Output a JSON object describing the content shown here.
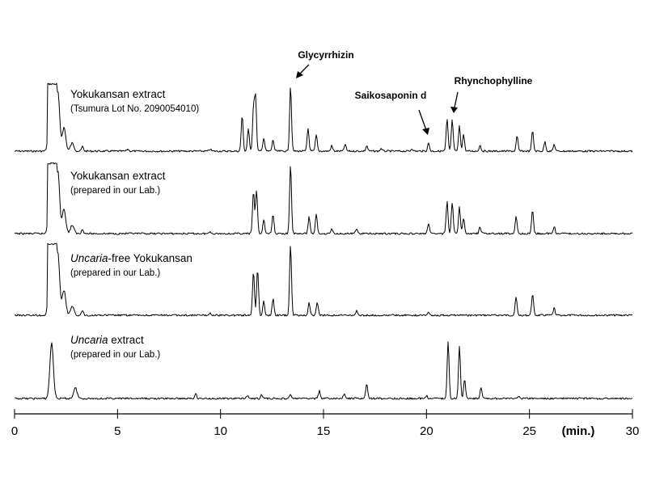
{
  "chart_data": {
    "type": "line",
    "xlabel": "(min.)",
    "xlim": [
      0,
      30
    ],
    "x_ticks": [
      "0",
      "5",
      "10",
      "15",
      "20",
      "25",
      "30"
    ],
    "series": [
      {
        "name_main": "Yokukansan extract",
        "name_main_italic": "",
        "name_sub": "(Tsumura Lot No. 2090054010)",
        "peaks": [
          [
            1.75,
            1.0
          ],
          [
            2.1,
            0.9
          ],
          [
            2.4,
            0.35
          ],
          [
            2.8,
            0.12
          ],
          [
            3.3,
            0.07
          ],
          [
            5.5,
            0.03
          ],
          [
            9.5,
            0.03
          ],
          [
            11.05,
            0.53
          ],
          [
            11.35,
            0.33
          ],
          [
            11.6,
            0.63
          ],
          [
            11.7,
            0.8
          ],
          [
            12.1,
            0.2
          ],
          [
            12.55,
            0.17
          ],
          [
            13.4,
            0.97
          ],
          [
            14.25,
            0.34
          ],
          [
            14.65,
            0.24
          ],
          [
            15.4,
            0.08
          ],
          [
            16.05,
            0.1
          ],
          [
            17.1,
            0.08
          ],
          [
            17.8,
            0.04
          ],
          [
            19.3,
            0.04
          ],
          [
            20.1,
            0.12
          ],
          [
            21.0,
            0.47
          ],
          [
            21.25,
            0.46
          ],
          [
            21.6,
            0.37
          ],
          [
            21.8,
            0.25
          ],
          [
            22.6,
            0.09
          ],
          [
            24.4,
            0.22
          ],
          [
            25.15,
            0.3
          ],
          [
            25.75,
            0.14
          ],
          [
            26.2,
            0.1
          ]
        ]
      },
      {
        "name_main": "Yokukansan extract",
        "name_main_italic": "",
        "name_sub": "(prepared in our Lab.)",
        "peaks": [
          [
            1.75,
            1.0
          ],
          [
            2.1,
            0.9
          ],
          [
            2.4,
            0.35
          ],
          [
            2.8,
            0.12
          ],
          [
            3.3,
            0.07
          ],
          [
            9.5,
            0.03
          ],
          [
            11.6,
            0.6
          ],
          [
            11.75,
            0.62
          ],
          [
            12.1,
            0.2
          ],
          [
            12.55,
            0.27
          ],
          [
            13.4,
            0.97
          ],
          [
            14.3,
            0.24
          ],
          [
            14.65,
            0.27
          ],
          [
            15.4,
            0.07
          ],
          [
            16.6,
            0.07
          ],
          [
            20.1,
            0.14
          ],
          [
            21.0,
            0.46
          ],
          [
            21.25,
            0.44
          ],
          [
            21.6,
            0.38
          ],
          [
            21.8,
            0.22
          ],
          [
            22.6,
            0.09
          ],
          [
            24.35,
            0.24
          ],
          [
            25.15,
            0.34
          ],
          [
            26.2,
            0.1
          ]
        ]
      },
      {
        "name_main": "-free Yokukansan",
        "name_main_italic": "Uncaria",
        "name_sub": "(prepared in our Lab.)",
        "peaks": [
          [
            1.75,
            1.0
          ],
          [
            2.1,
            0.9
          ],
          [
            2.4,
            0.35
          ],
          [
            2.8,
            0.12
          ],
          [
            3.3,
            0.07
          ],
          [
            9.5,
            0.03
          ],
          [
            11.6,
            0.62
          ],
          [
            11.8,
            0.65
          ],
          [
            12.1,
            0.2
          ],
          [
            12.55,
            0.23
          ],
          [
            13.4,
            1.0
          ],
          [
            14.3,
            0.17
          ],
          [
            14.7,
            0.18
          ],
          [
            16.6,
            0.06
          ],
          [
            20.1,
            0.05
          ],
          [
            24.35,
            0.25
          ],
          [
            25.15,
            0.3
          ],
          [
            26.2,
            0.1
          ]
        ]
      },
      {
        "name_main": " extract",
        "name_main_italic": "Uncaria",
        "name_sub": "(prepared in our Lab.)",
        "peaks": [
          [
            1.8,
            0.84
          ],
          [
            2.95,
            0.16
          ],
          [
            8.8,
            0.08
          ],
          [
            11.3,
            0.05
          ],
          [
            12.0,
            0.06
          ],
          [
            13.4,
            0.06
          ],
          [
            14.8,
            0.12
          ],
          [
            16.0,
            0.07
          ],
          [
            17.1,
            0.23
          ],
          [
            20.0,
            0.04
          ],
          [
            21.05,
            0.86
          ],
          [
            21.6,
            0.8
          ],
          [
            21.85,
            0.3
          ],
          [
            22.65,
            0.17
          ],
          [
            24.5,
            0.04
          ]
        ]
      }
    ],
    "annotations": {
      "glycyrrhizin": "Glycyrrhizin",
      "saikosaponin": "Saikosaponin d",
      "rhynchophylline": "Rhynchophylline"
    }
  }
}
